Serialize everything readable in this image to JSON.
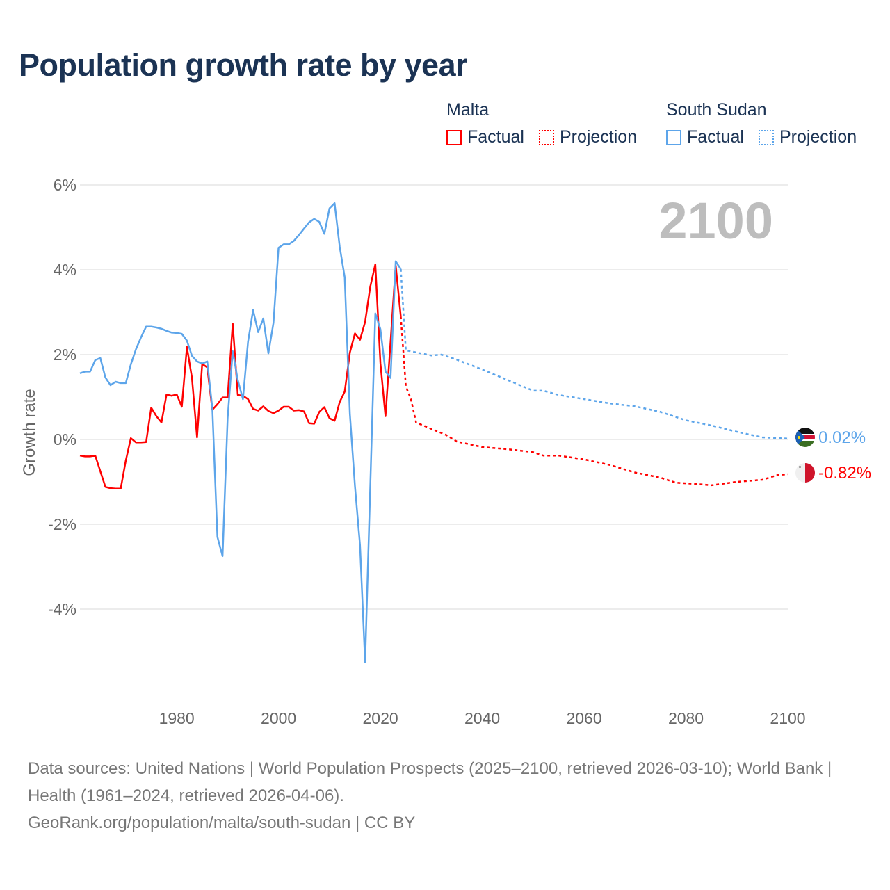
{
  "title": "Population growth rate by year",
  "legend": [
    {
      "name": "Malta",
      "color": "#ff0000",
      "factual": "Factual",
      "projection": "Projection"
    },
    {
      "name": "South Sudan",
      "color": "#5da5ea",
      "factual": "Factual",
      "projection": "Projection"
    }
  ],
  "year_label": "2100",
  "end_labels": {
    "south_sudan": "0.02%",
    "malta": "-0.82%"
  },
  "footer": {
    "sources": "Data sources: United Nations | World Population Prospects (2025–2100, retrieved 2026-03-10); World Bank | Health (1961–2024, retrieved 2026-04-06).",
    "url": "GeoRank.org/population/malta/south-sudan | CC BY"
  },
  "chart_data": {
    "type": "line",
    "title": "Population growth rate by year",
    "xlabel": "",
    "ylabel": "Growth rate",
    "xlim": [
      1961,
      2100
    ],
    "ylim": [
      -5.5,
      6
    ],
    "grid": true,
    "legend_position": "top-right",
    "x_ticks": [
      1980,
      2000,
      2020,
      2040,
      2060,
      2080,
      2100
    ],
    "x_tick_labels": [
      "1980",
      "2000",
      "2020",
      "2040",
      "2060",
      "2080",
      "2100"
    ],
    "y_ticks": [
      6,
      4,
      2,
      0,
      -2,
      -4
    ],
    "y_tick_labels": [
      "6%",
      "4%",
      "2%",
      "0%",
      "-2%",
      "-4%"
    ],
    "series": [
      {
        "name": "Malta Factual",
        "color": "#ff0000",
        "style": "solid",
        "x": [
          1961,
          1962,
          1963,
          1964,
          1965,
          1966,
          1967,
          1968,
          1969,
          1970,
          1971,
          1972,
          1973,
          1974,
          1975,
          1976,
          1977,
          1978,
          1979,
          1980,
          1981,
          1982,
          1983,
          1984,
          1985,
          1986,
          1987,
          1988,
          1989,
          1990,
          1991,
          1992,
          1993,
          1994,
          1995,
          1996,
          1997,
          1998,
          1999,
          2000,
          2001,
          2002,
          2003,
          2004,
          2005,
          2006,
          2007,
          2008,
          2009,
          2010,
          2011,
          2012,
          2013,
          2014,
          2015,
          2016,
          2017,
          2018,
          2019,
          2020,
          2021,
          2022,
          2023,
          2024
        ],
        "y": [
          -0.38,
          -0.4,
          -0.4,
          -0.38,
          -0.75,
          -1.12,
          -1.15,
          -1.16,
          -1.16,
          -0.5,
          0.03,
          -0.07,
          -0.07,
          -0.06,
          0.75,
          0.55,
          0.4,
          1.06,
          1.03,
          1.06,
          0.77,
          2.18,
          1.45,
          0.05,
          1.78,
          1.7,
          0.7,
          0.83,
          0.99,
          0.99,
          2.73,
          1.05,
          1.03,
          0.95,
          0.72,
          0.68,
          0.78,
          0.67,
          0.62,
          0.68,
          0.77,
          0.77,
          0.68,
          0.69,
          0.66,
          0.38,
          0.37,
          0.65,
          0.76,
          0.5,
          0.44,
          0.88,
          1.13,
          2.05,
          2.5,
          2.35,
          2.77,
          3.6,
          4.13,
          1.8,
          0.55,
          2.3,
          4.1,
          2.9
        ]
      },
      {
        "name": "Malta Projection",
        "color": "#ff0000",
        "style": "dotted",
        "x": [
          2024,
          2025,
          2026,
          2027,
          2030,
          2033,
          2035,
          2040,
          2045,
          2050,
          2052,
          2055,
          2060,
          2065,
          2070,
          2075,
          2078,
          2082,
          2085,
          2090,
          2095,
          2098,
          2100
        ],
        "y": [
          2.9,
          1.25,
          0.95,
          0.4,
          0.25,
          0.1,
          -0.05,
          -0.18,
          -0.23,
          -0.3,
          -0.38,
          -0.38,
          -0.47,
          -0.6,
          -0.78,
          -0.9,
          -1.02,
          -1.05,
          -1.08,
          -1.0,
          -0.95,
          -0.84,
          -0.82
        ]
      },
      {
        "name": "South Sudan Factual",
        "color": "#5da5ea",
        "style": "solid",
        "x": [
          1961,
          1962,
          1963,
          1964,
          1965,
          1966,
          1967,
          1968,
          1969,
          1970,
          1971,
          1972,
          1973,
          1974,
          1975,
          1976,
          1977,
          1978,
          1979,
          1980,
          1981,
          1982,
          1983,
          1984,
          1985,
          1986,
          1987,
          1988,
          1989,
          1990,
          1991,
          1992,
          1993,
          1994,
          1995,
          1996,
          1997,
          1998,
          1999,
          2000,
          2001,
          2002,
          2003,
          2004,
          2005,
          2006,
          2007,
          2008,
          2009,
          2010,
          2011,
          2012,
          2013,
          2014,
          2015,
          2016,
          2017,
          2018,
          2019,
          2020,
          2021,
          2022,
          2023,
          2024
        ],
        "y": [
          1.56,
          1.6,
          1.6,
          1.87,
          1.92,
          1.46,
          1.28,
          1.36,
          1.33,
          1.33,
          1.77,
          2.13,
          2.41,
          2.66,
          2.66,
          2.64,
          2.61,
          2.56,
          2.52,
          2.51,
          2.49,
          2.33,
          1.97,
          1.84,
          1.79,
          1.84,
          0.74,
          -2.3,
          -2.75,
          0.5,
          2.08,
          1.4,
          0.95,
          2.3,
          3.05,
          2.53,
          2.85,
          2.03,
          2.75,
          4.52,
          4.6,
          4.6,
          4.68,
          4.82,
          4.97,
          5.12,
          5.2,
          5.13,
          4.85,
          5.45,
          5.57,
          4.55,
          3.82,
          0.6,
          -1.1,
          -2.5,
          -5.25,
          -1.13,
          2.97,
          2.6,
          1.6,
          1.45,
          4.2,
          4.02
        ]
      },
      {
        "name": "South Sudan Projection",
        "color": "#5da5ea",
        "style": "dotted",
        "x": [
          2024,
          2025,
          2030,
          2032,
          2035,
          2040,
          2045,
          2050,
          2052,
          2055,
          2060,
          2065,
          2070,
          2075,
          2080,
          2085,
          2090,
          2095,
          2100
        ],
        "y": [
          4.02,
          2.1,
          1.98,
          2.0,
          1.88,
          1.65,
          1.4,
          1.15,
          1.15,
          1.05,
          0.95,
          0.85,
          0.78,
          0.65,
          0.45,
          0.33,
          0.18,
          0.05,
          0.02
        ]
      }
    ]
  }
}
